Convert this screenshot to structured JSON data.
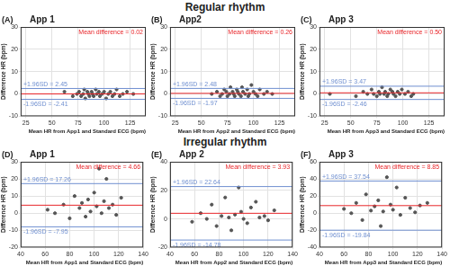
{
  "headings": [
    "Regular rhythm",
    "Irregular rhythm"
  ],
  "chart_data": [
    {
      "type": "scatter",
      "panel": "(A)",
      "title": "App 1",
      "x_label": "Mean HR from App1 and Standard ECG (bpm)",
      "y_label": "Difference HR (bpm)",
      "x": [
        62,
        70,
        74,
        76,
        78,
        80,
        81,
        82,
        84,
        85,
        86,
        88,
        89,
        90,
        92,
        93,
        95,
        96,
        98,
        100,
        102,
        104,
        106,
        108,
        110,
        112,
        115,
        118,
        122,
        128
      ],
      "values": [
        1,
        -1,
        0,
        1,
        -1,
        0,
        2,
        -2,
        1,
        0,
        -1,
        1,
        0,
        -1,
        2,
        0,
        1,
        -1,
        0,
        1,
        -2,
        0,
        1,
        -1,
        0,
        2,
        -1,
        0,
        1,
        0
      ],
      "color": "#555555",
      "xlim": [
        20,
        140
      ],
      "ylim": [
        -10,
        30
      ],
      "xticks": [
        25,
        50,
        75,
        100,
        125
      ],
      "yticks": [
        -10,
        0,
        10,
        20,
        30
      ],
      "grid": true,
      "reference_lines": [
        {
          "text": "Mean difference = 0.02",
          "value": 0.02,
          "color": "#e8262a"
        },
        {
          "text": "+1.96SD = 2.45",
          "value": 2.45,
          "color": "#6f8fd0"
        },
        {
          "text": "-1.96SD = -2.41",
          "value": -2.41,
          "color": "#6f8fd0"
        }
      ]
    },
    {
      "type": "scatter",
      "panel": "(B)",
      "title": "App2",
      "x_label": "Mean HR from App2 and Standard ECG (bpm)",
      "y_label": "Difference HR (bpm)",
      "x": [
        60,
        65,
        68,
        70,
        72,
        74,
        75,
        77,
        78,
        80,
        81,
        82,
        84,
        85,
        86,
        88,
        89,
        90,
        92,
        94,
        95,
        96,
        98,
        100,
        102,
        104,
        106,
        110,
        113,
        118
      ],
      "values": [
        0,
        1,
        -1,
        0,
        2,
        1,
        -1,
        0,
        3,
        1,
        0,
        -1,
        2,
        1,
        0,
        -1,
        3,
        1,
        0,
        2,
        -1,
        0,
        4,
        1,
        0,
        -1,
        2,
        0,
        1,
        0
      ],
      "color": "#555555",
      "xlim": [
        20,
        140
      ],
      "ylim": [
        -10,
        30
      ],
      "xticks": [
        25,
        50,
        75,
        100,
        125
      ],
      "yticks": [
        -10,
        0,
        10,
        20,
        30
      ],
      "grid": true,
      "reference_lines": [
        {
          "text": "Mean difference = 0.26",
          "value": 0.26,
          "color": "#e8262a"
        },
        {
          "text": "+1.96SD = 2.48",
          "value": 2.48,
          "color": "#6f8fd0"
        },
        {
          "text": "-1.96SD = -1.97",
          "value": -1.97,
          "color": "#6f8fd0"
        }
      ]
    },
    {
      "type": "scatter",
      "panel": "(C)",
      "title": "App 3",
      "x_label": "Mean HR from App3 and Standard ECG (bpm)",
      "y_label": "Difference HR (bpm)",
      "x": [
        30,
        55,
        62,
        66,
        70,
        72,
        75,
        77,
        78,
        80,
        82,
        83,
        85,
        86,
        88,
        90,
        91,
        93,
        95,
        97,
        99,
        102,
        105,
        108,
        110
      ],
      "values": [
        0,
        -1,
        1,
        0,
        2,
        0,
        -1,
        1,
        0,
        3,
        0,
        1,
        -1,
        0,
        2,
        1,
        0,
        -1,
        1,
        0,
        2,
        0,
        1,
        -1,
        0
      ],
      "color": "#555555",
      "xlim": [
        20,
        140
      ],
      "ylim": [
        -10,
        30
      ],
      "xticks": [
        25,
        50,
        75,
        100,
        125
      ],
      "yticks": [
        -10,
        0,
        10,
        20,
        30
      ],
      "grid": true,
      "reference_lines": [
        {
          "text": "Mean difference = 0.50",
          "value": 0.5,
          "color": "#e8262a"
        },
        {
          "text": "+1.96SD = 3.47",
          "value": 3.47,
          "color": "#6f8fd0"
        },
        {
          "text": "-1.96SD = -2.46",
          "value": -2.46,
          "color": "#6f8fd0"
        }
      ]
    },
    {
      "type": "scatter",
      "panel": "(D)",
      "title": "App 1",
      "x_label": "Mean HR from App1 and Standard ECG (bpm)",
      "y_label": "Difference HR (bpm)",
      "x": [
        62,
        68,
        75,
        80,
        84,
        88,
        90,
        93,
        95,
        97,
        100,
        102,
        104,
        106,
        108,
        110,
        112,
        115,
        118,
        122
      ],
      "values": [
        2,
        0,
        5,
        -3,
        10,
        3,
        6,
        -2,
        8,
        1,
        12,
        4,
        26,
        0,
        7,
        20,
        3,
        5,
        -1,
        9
      ],
      "color": "#555555",
      "xlim": [
        40,
        140
      ],
      "ylim": [
        -20,
        30
      ],
      "xticks": [
        40,
        60,
        80,
        100,
        120,
        140
      ],
      "yticks": [
        -20,
        -10,
        0,
        10,
        20,
        30
      ],
      "grid": true,
      "reference_lines": [
        {
          "text": "Mean difference = 4.66",
          "value": 4.66,
          "color": "#e8262a"
        },
        {
          "text": "+1.96SD = 17.26",
          "value": 17.26,
          "color": "#6f8fd0"
        },
        {
          "text": "-1.96SD = -7.95",
          "value": -7.95,
          "color": "#6f8fd0"
        }
      ]
    },
    {
      "type": "scatter",
      "panel": "(E)",
      "title": "App 2",
      "x_label": "Mean HR from App2 and Standard ECG (bpm)",
      "y_label": "Difference HR (bpm)",
      "x": [
        58,
        65,
        70,
        74,
        78,
        82,
        85,
        88,
        90,
        93,
        96,
        98,
        100,
        103,
        106,
        110,
        113,
        117,
        120,
        125
      ],
      "values": [
        -2,
        4,
        0,
        10,
        -5,
        2,
        15,
        1,
        -8,
        3,
        22,
        5,
        0,
        -3,
        8,
        12,
        1,
        2,
        -1,
        6
      ],
      "color": "#555555",
      "xlim": [
        40,
        140
      ],
      "ylim": [
        -20,
        40
      ],
      "xticks": [
        40,
        60,
        80,
        100,
        120,
        140
      ],
      "yticks": [
        -20,
        0,
        20,
        40
      ],
      "grid": true,
      "reference_lines": [
        {
          "text": "Mean difference = 3.93",
          "value": 3.93,
          "color": "#e8262a"
        },
        {
          "text": "+1.96SD = 22.64",
          "value": 22.64,
          "color": "#6f8fd0"
        },
        {
          "text": "-1.96SD = -14.78",
          "value": -14.78,
          "color": "#6f8fd0"
        }
      ]
    },
    {
      "type": "scatter",
      "panel": "(F)",
      "title": "App 3",
      "x_label": "Mean HR from App3 and Standard ECG (bpm)",
      "y_label": "Difference HR (bpm)",
      "x": [
        60,
        66,
        70,
        75,
        78,
        82,
        85,
        88,
        90,
        92,
        95,
        98,
        100,
        103,
        106,
        110,
        114,
        118,
        122,
        128
      ],
      "values": [
        5,
        0,
        12,
        -8,
        22,
        3,
        8,
        15,
        -15,
        2,
        42,
        10,
        4,
        30,
        -2,
        18,
        6,
        1,
        9,
        12
      ],
      "color": "#555555",
      "xlim": [
        40,
        140
      ],
      "ylim": [
        -40,
        60
      ],
      "xticks": [
        40,
        60,
        80,
        100,
        120,
        140
      ],
      "yticks": [
        -40,
        -20,
        0,
        20,
        40,
        60
      ],
      "grid": true,
      "reference_lines": [
        {
          "text": "Mean difference = 8.85",
          "value": 8.85,
          "color": "#e8262a"
        },
        {
          "text": "+1.96SD = 37.54",
          "value": 37.54,
          "color": "#6f8fd0"
        },
        {
          "text": "-1.96SD = -19.84",
          "value": -19.84,
          "color": "#6f8fd0"
        }
      ]
    }
  ]
}
